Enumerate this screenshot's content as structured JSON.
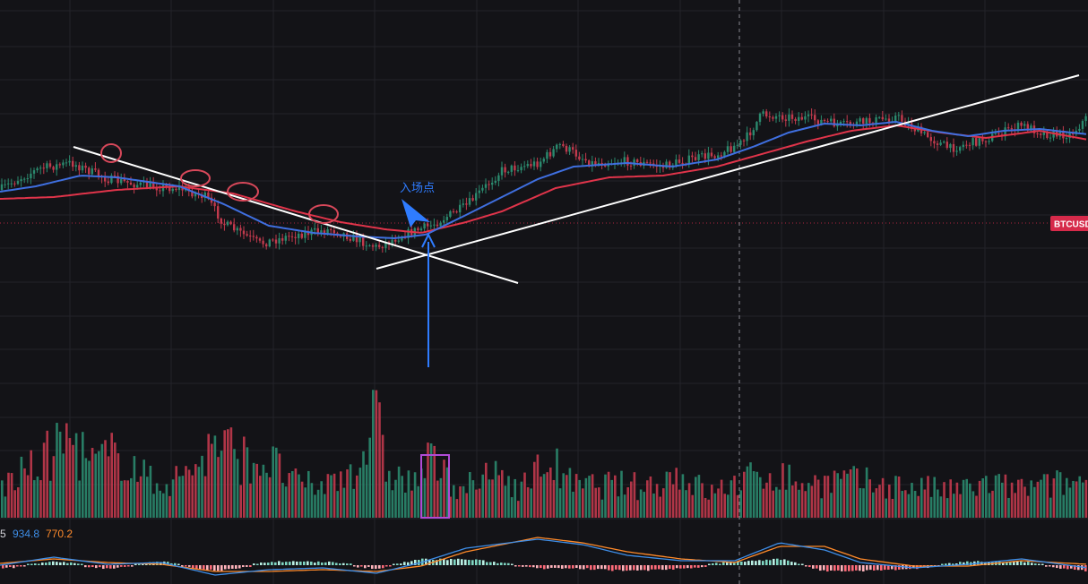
{
  "colors": {
    "background": "#131317",
    "grid": "#23232a",
    "up": "#2b8a6e",
    "down": "#c23a4d",
    "ema_fast": "#3f6fe0",
    "ema_slow": "#e0344a",
    "trendline": "#ffffff",
    "annotation": "#2f7cff",
    "circle": "#d8485a",
    "highlight": "#b04bd6",
    "macd_line": "#3e8ee8",
    "signal_line": "#ff8a2a",
    "price_badge": "#d62a4a"
  },
  "price_badge": {
    "label": "BTCUSD"
  },
  "annotation": {
    "label": "入场点"
  },
  "macd_readout": {
    "prefix": "5",
    "macd": "934.8",
    "signal": "770.2"
  },
  "chart_data": {
    "type": "candlestick",
    "symbol": "BTCUSD",
    "series": [
      {
        "name": "",
        "kind": "candles+volume",
        "anchors": [
          [
            0,
            212
          ],
          [
            20,
            200
          ],
          [
            45,
            188
          ],
          [
            80,
            182
          ],
          [
            120,
            200
          ],
          [
            165,
            208
          ],
          [
            200,
            210
          ],
          [
            230,
            220
          ],
          [
            250,
            250
          ],
          [
            290,
            272
          ],
          [
            330,
            262
          ],
          [
            370,
            256
          ],
          [
            420,
            276
          ],
          [
            450,
            262
          ],
          [
            480,
            252
          ],
          [
            520,
            230
          ],
          [
            560,
            190
          ],
          [
            600,
            182
          ],
          [
            625,
            162
          ],
          [
            660,
            182
          ],
          [
            700,
            180
          ],
          [
            740,
            186
          ],
          [
            760,
            180
          ],
          [
            800,
            172
          ],
          [
            830,
            158
          ],
          [
            850,
            128
          ],
          [
            900,
            132
          ],
          [
            940,
            140
          ],
          [
            980,
            134
          ],
          [
            1000,
            130
          ],
          [
            1030,
            150
          ],
          [
            1060,
            166
          ],
          [
            1100,
            155
          ],
          [
            1140,
            140
          ],
          [
            1170,
            150
          ],
          [
            1195,
            150
          ],
          [
            1214,
            130
          ]
        ]
      },
      {
        "name": "",
        "kind": "ema_fast",
        "anchors": [
          [
            0,
            214
          ],
          [
            40,
            208
          ],
          [
            90,
            196
          ],
          [
            130,
            198
          ],
          [
            200,
            208
          ],
          [
            250,
            228
          ],
          [
            300,
            252
          ],
          [
            350,
            260
          ],
          [
            400,
            264
          ],
          [
            440,
            266
          ],
          [
            475,
            262
          ],
          [
            520,
            240
          ],
          [
            560,
            220
          ],
          [
            600,
            200
          ],
          [
            640,
            186
          ],
          [
            700,
            182
          ],
          [
            750,
            186
          ],
          [
            800,
            178
          ],
          [
            840,
            164
          ],
          [
            880,
            148
          ],
          [
            920,
            138
          ],
          [
            960,
            140
          ],
          [
            1000,
            136
          ],
          [
            1040,
            146
          ],
          [
            1080,
            152
          ],
          [
            1120,
            146
          ],
          [
            1160,
            144
          ],
          [
            1214,
            150
          ]
        ]
      },
      {
        "name": "",
        "kind": "ema_slow",
        "anchors": [
          [
            0,
            222
          ],
          [
            60,
            220
          ],
          [
            130,
            212
          ],
          [
            200,
            208
          ],
          [
            260,
            216
          ],
          [
            330,
            236
          ],
          [
            380,
            248
          ],
          [
            430,
            256
          ],
          [
            470,
            260
          ],
          [
            520,
            248
          ],
          [
            560,
            236
          ],
          [
            620,
            210
          ],
          [
            680,
            198
          ],
          [
            740,
            196
          ],
          [
            800,
            186
          ],
          [
            850,
            172
          ],
          [
            900,
            158
          ],
          [
            950,
            146
          ],
          [
            1000,
            140
          ],
          [
            1050,
            148
          ],
          [
            1100,
            154
          ],
          [
            1160,
            146
          ],
          [
            1214,
            156
          ]
        ]
      },
      {
        "name": "",
        "kind": "macd",
        "anchors": [
          [
            0,
            631
          ],
          [
            60,
            622
          ],
          [
            120,
            630
          ],
          [
            180,
            628
          ],
          [
            240,
            642
          ],
          [
            300,
            636
          ],
          [
            360,
            634
          ],
          [
            420,
            640
          ],
          [
            470,
            628
          ],
          [
            520,
            612
          ],
          [
            600,
            602
          ],
          [
            650,
            608
          ],
          [
            700,
            620
          ],
          [
            760,
            626
          ],
          [
            820,
            626
          ],
          [
            870,
            606
          ],
          [
            920,
            614
          ],
          [
            960,
            628
          ],
          [
            1020,
            634
          ],
          [
            1080,
            630
          ],
          [
            1140,
            624
          ],
          [
            1214,
            634
          ]
        ]
      },
      {
        "name": "",
        "kind": "signal",
        "anchors": [
          [
            0,
            629
          ],
          [
            60,
            624
          ],
          [
            120,
            628
          ],
          [
            180,
            630
          ],
          [
            240,
            638
          ],
          [
            300,
            638
          ],
          [
            360,
            636
          ],
          [
            420,
            638
          ],
          [
            470,
            632
          ],
          [
            520,
            616
          ],
          [
            600,
            600
          ],
          [
            650,
            606
          ],
          [
            700,
            616
          ],
          [
            760,
            624
          ],
          [
            820,
            628
          ],
          [
            870,
            610
          ],
          [
            920,
            610
          ],
          [
            960,
            624
          ],
          [
            1020,
            632
          ],
          [
            1080,
            632
          ],
          [
            1140,
            626
          ],
          [
            1214,
            630
          ]
        ]
      }
    ],
    "volume_anchors": [
      [
        0,
        0.28
      ],
      [
        40,
        0.46
      ],
      [
        75,
        0.72
      ],
      [
        100,
        0.48
      ],
      [
        135,
        0.58
      ],
      [
        170,
        0.3
      ],
      [
        200,
        0.36
      ],
      [
        235,
        0.62
      ],
      [
        245,
        0.67
      ],
      [
        265,
        0.54
      ],
      [
        300,
        0.5
      ],
      [
        330,
        0.3
      ],
      [
        360,
        0.28
      ],
      [
        400,
        0.5
      ],
      [
        418,
        0.9
      ],
      [
        430,
        0.42
      ],
      [
        460,
        0.3
      ],
      [
        480,
        0.52
      ],
      [
        500,
        0.32
      ],
      [
        530,
        0.28
      ],
      [
        555,
        0.42
      ],
      [
        580,
        0.26
      ],
      [
        610,
        0.52
      ],
      [
        640,
        0.28
      ],
      [
        680,
        0.3
      ],
      [
        720,
        0.28
      ],
      [
        755,
        0.4
      ],
      [
        790,
        0.22
      ],
      [
        830,
        0.34
      ],
      [
        860,
        0.4
      ],
      [
        900,
        0.3
      ],
      [
        940,
        0.34
      ],
      [
        980,
        0.3
      ],
      [
        1020,
        0.28
      ],
      [
        1060,
        0.24
      ],
      [
        1100,
        0.3
      ],
      [
        1140,
        0.26
      ],
      [
        1214,
        0.34
      ]
    ],
    "trendlines": [
      {
        "name": "descending",
        "from": [
          82,
          164
        ],
        "to": [
          578,
          316
        ]
      },
      {
        "name": "ascending",
        "from": [
          420,
          300
        ],
        "to": [
          1204,
          84
        ]
      }
    ],
    "markers": [
      {
        "kind": "circle",
        "at": [
          124,
          171
        ],
        "rx": 11,
        "ry": 10
      },
      {
        "kind": "circle",
        "at": [
          218,
          199
        ],
        "rx": 16,
        "ry": 9
      },
      {
        "kind": "circle",
        "at": [
          271,
          214
        ],
        "rx": 17,
        "ry": 10
      },
      {
        "kind": "circle",
        "at": [
          361,
          239
        ],
        "rx": 16,
        "ry": 10
      },
      {
        "kind": "arrow-up",
        "from": [
          478,
          410
        ],
        "to": [
          478,
          262
        ]
      },
      {
        "kind": "arrow-pointer",
        "at": [
          462,
          234
        ]
      },
      {
        "kind": "highlight-box",
        "x": [
          470,
          501
        ]
      }
    ],
    "crosshair_x": 825,
    "price_line_y": 249
  }
}
